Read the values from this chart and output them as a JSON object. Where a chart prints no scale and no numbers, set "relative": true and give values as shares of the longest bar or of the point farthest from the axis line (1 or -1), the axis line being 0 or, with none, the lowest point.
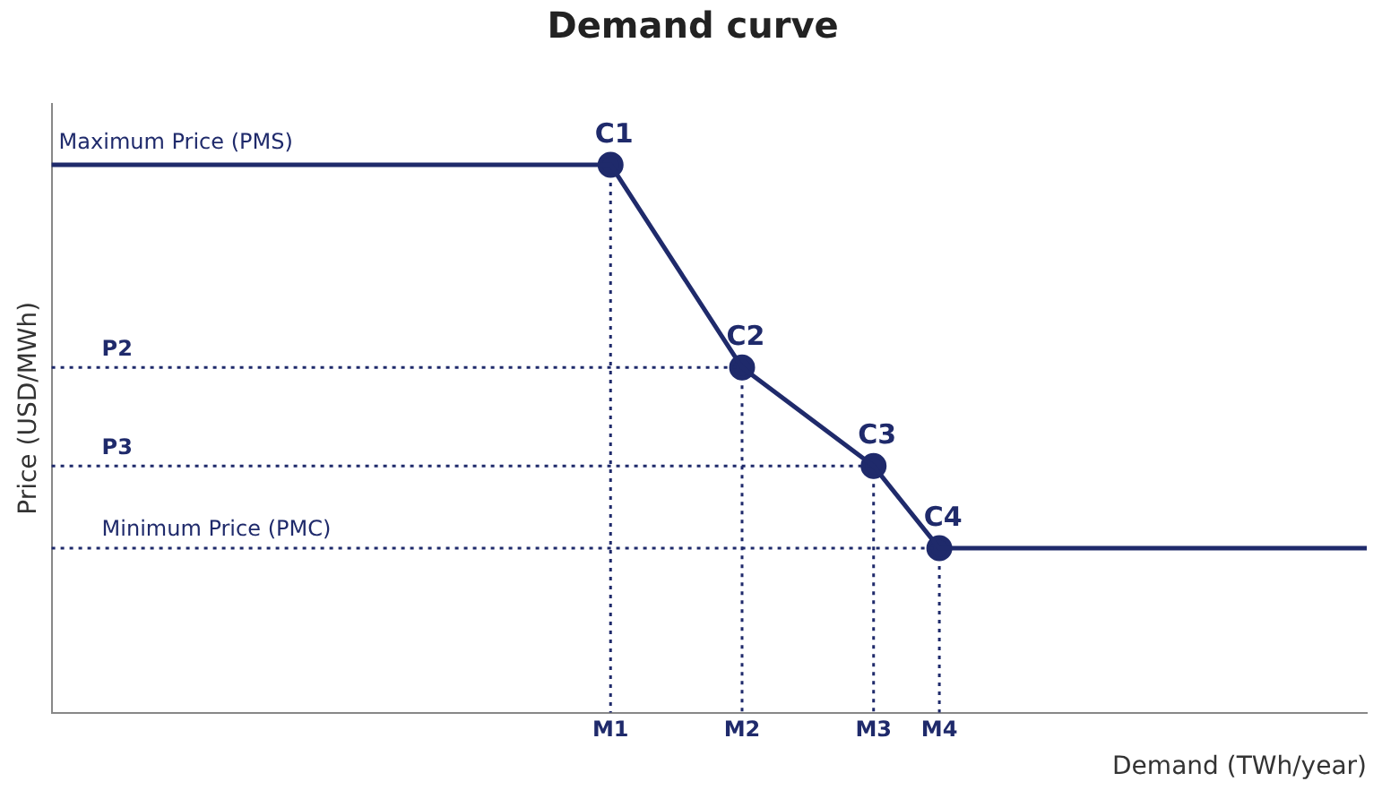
{
  "chart_data": {
    "type": "line",
    "title": "Demand curve",
    "xlabel": "Demand (TWh/year)",
    "ylabel": "Price (USD/MWh)",
    "relative": true,
    "categories": [
      null,
      null,
      null,
      null,
      null,
      null,
      null,
      null,
      null,
      null,
      null,
      null,
      null,
      null,
      null,
      null,
      null,
      "M1",
      null,
      null,
      null,
      "M2",
      null,
      null,
      null,
      "M3",
      null,
      "M4",
      null,
      null,
      null,
      null,
      null,
      null,
      null,
      null,
      null,
      null,
      null,
      null,
      null
    ],
    "grid": false,
    "legend": false,
    "series": [
      {
        "color": "#1f2a6b",
        "marker": "none",
        "line_style": "solid",
        "values": [
          1,
          null,
          null,
          null,
          null,
          null,
          null,
          null,
          null,
          null,
          null,
          null,
          null,
          null,
          null,
          null,
          null,
          1,
          null,
          null,
          null,
          0.63,
          null,
          null,
          null,
          0.45,
          null,
          0.3,
          null,
          null,
          null,
          null,
          null,
          null,
          null,
          null,
          null,
          null,
          null,
          null,
          0.3
        ]
      },
      {
        "name": "P2",
        "color": "#1f2a6b",
        "marker": "none",
        "line_style": "dotted",
        "values": [
          0.63,
          null,
          null,
          null,
          null,
          null,
          null,
          null,
          null,
          null,
          null,
          null,
          null,
          null,
          null,
          null,
          null,
          null,
          null,
          null,
          null,
          0.63,
          null,
          null,
          null,
          null,
          null,
          null,
          null,
          null,
          null,
          null,
          null,
          null,
          null,
          null,
          null,
          null,
          null,
          null,
          null
        ]
      },
      {
        "name": "P3",
        "color": "#1f2a6b",
        "marker": "none",
        "line_style": "dotted",
        "values": [
          0.45,
          null,
          null,
          null,
          null,
          null,
          null,
          null,
          null,
          null,
          null,
          null,
          null,
          null,
          null,
          null,
          null,
          null,
          null,
          null,
          null,
          null,
          null,
          null,
          null,
          0.45,
          null,
          null,
          null,
          null,
          null,
          null,
          null,
          null,
          null,
          null,
          null,
          null,
          null,
          null,
          null
        ]
      },
      {
        "name": "Minimum Price (PMC)",
        "color": "#1f2a6b",
        "marker": "none",
        "line_style": "dotted",
        "values": [
          0.3,
          null,
          null,
          null,
          null,
          null,
          null,
          null,
          null,
          null,
          null,
          null,
          null,
          null,
          null,
          null,
          null,
          null,
          null,
          null,
          null,
          null,
          null,
          null,
          null,
          null,
          null,
          0.3,
          null,
          null,
          null,
          null,
          null,
          null,
          null,
          null,
          null,
          null,
          null,
          null,
          null
        ]
      },
      {
        "type": "scatter",
        "color": "#1f2a6b",
        "marker": "circle",
        "values": [
          null,
          null,
          null,
          null,
          null,
          null,
          null,
          null,
          null,
          null,
          null,
          null,
          null,
          null,
          null,
          null,
          null,
          1,
          null,
          null,
          null,
          0.63,
          null,
          null,
          null,
          0.45,
          null,
          0.3,
          null,
          null,
          null,
          null,
          null,
          null,
          null,
          null,
          null,
          null,
          null,
          null,
          null
        ]
      }
    ],
    "annotations": [
      {
        "text": "Maximum Price (PMS)",
        "y": 1
      },
      {
        "text": "C1",
        "x": "M1",
        "y": 1
      },
      {
        "text": "C2",
        "x": "M2",
        "y": 0.63
      },
      {
        "text": "C3",
        "x": "M3",
        "y": 0.45
      },
      {
        "text": "C4",
        "x": "M4",
        "y": 0.3
      }
    ]
  }
}
